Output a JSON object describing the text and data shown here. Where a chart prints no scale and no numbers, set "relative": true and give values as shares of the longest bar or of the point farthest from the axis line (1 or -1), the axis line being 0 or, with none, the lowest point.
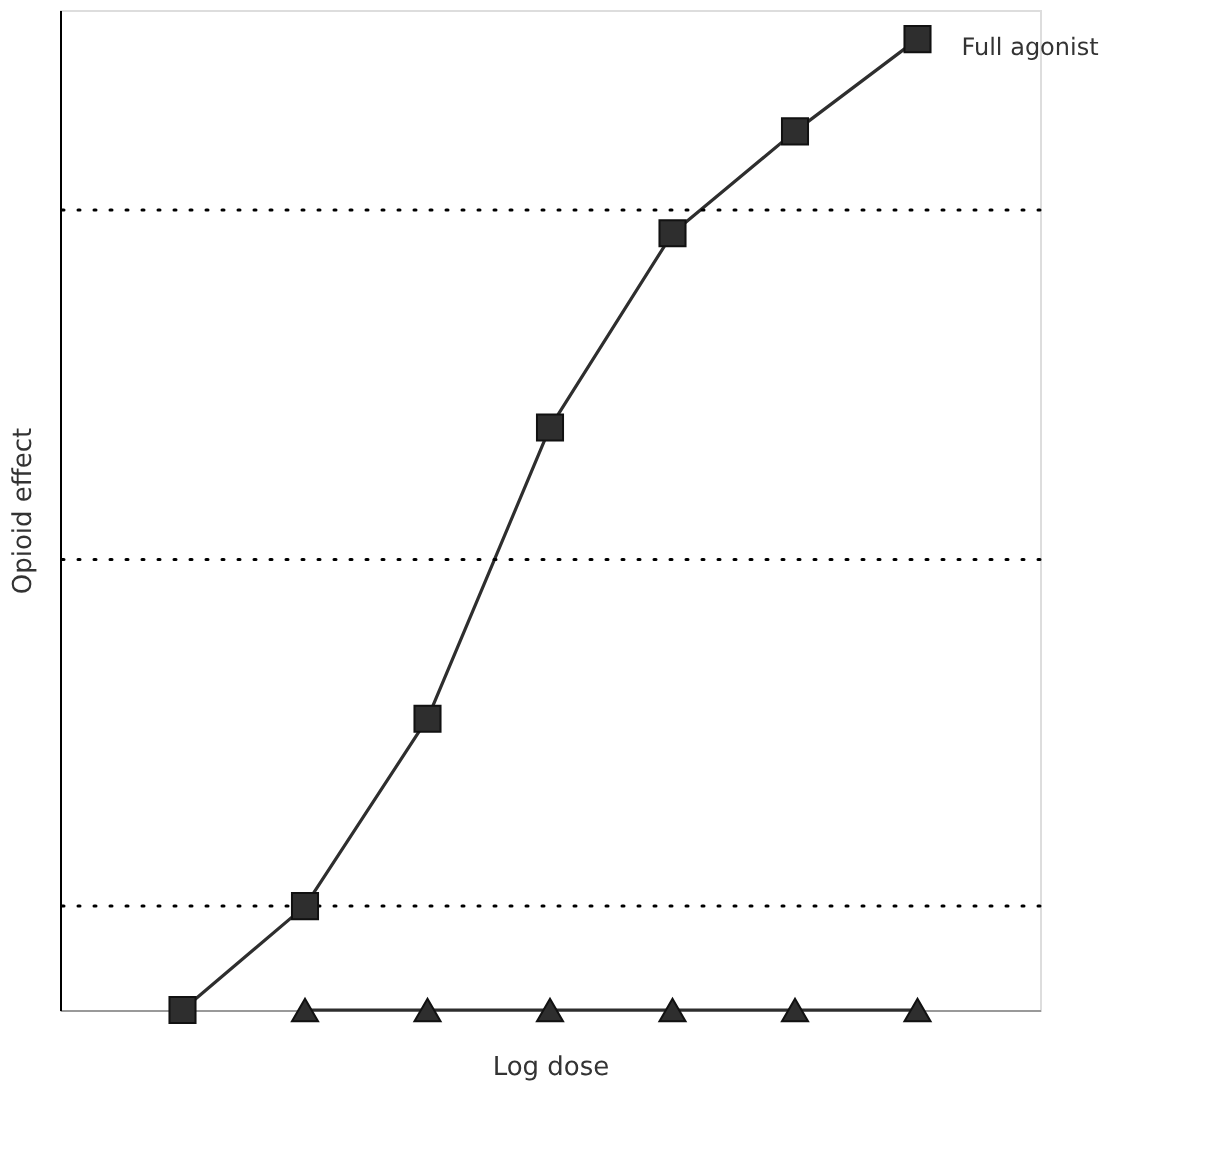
{
  "chart_data": {
    "type": "line",
    "relative": true,
    "xlabel": "Log dose",
    "ylabel": "Opioid effect",
    "categories": [
      null,
      null,
      null,
      null,
      null,
      null,
      null
    ],
    "series": [
      {
        "name": "Full agonist",
        "color": "#2e2e2e",
        "marker": "square",
        "values": [
          0,
          0.107,
          0.3,
          0.6,
          0.8,
          0.905,
          1.0
        ]
      },
      {
        "color": "#2e2e2e",
        "marker": "triangle",
        "values": [
          null,
          0,
          0,
          0,
          0,
          0,
          0
        ]
      }
    ],
    "ref_lines": [
      {
        "axis": "y",
        "value": 0.107,
        "line_style": "dotted",
        "color": "#000000"
      },
      {
        "axis": "y",
        "value": 0.464,
        "line_style": "dotted",
        "color": "#000000"
      },
      {
        "axis": "y",
        "value": 0.824,
        "line_style": "dotted",
        "color": "#000000"
      }
    ]
  }
}
